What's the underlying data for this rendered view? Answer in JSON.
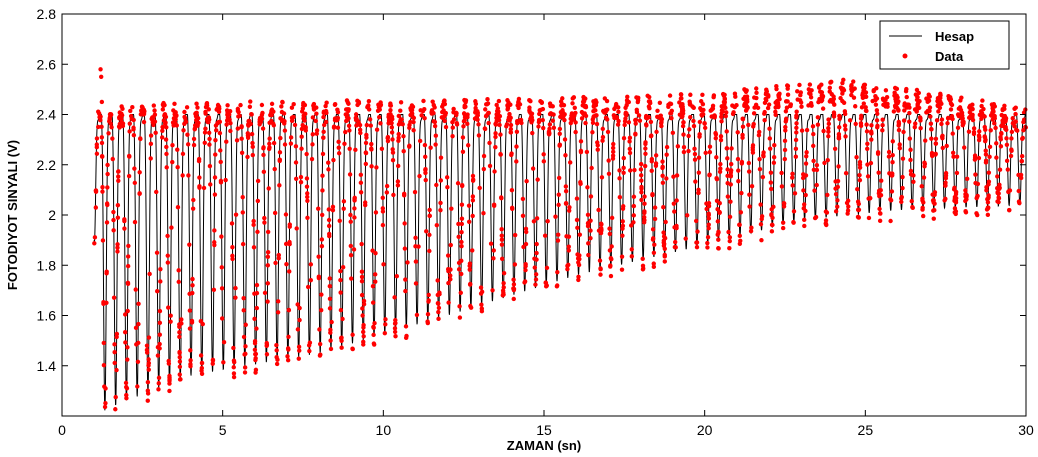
{
  "chart_data": {
    "type": "line",
    "title": "",
    "xlabel": "ZAMAN (sn)",
    "ylabel": "FOTODIYOT SINYALI (V)",
    "xlim": [
      0,
      30
    ],
    "ylim": [
      1.2,
      2.8
    ],
    "xticks": [
      0,
      5,
      10,
      15,
      20,
      25,
      30
    ],
    "yticks": [
      1.4,
      1.6,
      1.8,
      2.0,
      2.2,
      2.4,
      2.6,
      2.8
    ],
    "xtick_labels": [
      "0",
      "5",
      "10",
      "15",
      "20",
      "25",
      "30"
    ],
    "ytick_labels": [
      "1.4",
      "1.6",
      "1.8",
      "2",
      "2.2",
      "2.4",
      "2.6",
      "2.8"
    ],
    "grid": false,
    "legend_position": "top-right",
    "series": [
      {
        "name": "Hesap",
        "kind": "line",
        "color": "#000000",
        "x_range": [
          1.0,
          30.0
        ],
        "oscillation_period": 0.335,
        "max_value": 2.4,
        "min_envelope": [
          [
            1.0,
            1.9
          ],
          [
            1.3,
            1.22
          ],
          [
            2.0,
            1.26
          ],
          [
            4.0,
            1.36
          ],
          [
            8.0,
            1.45
          ],
          [
            12.0,
            1.6
          ],
          [
            16.0,
            1.76
          ],
          [
            20.0,
            1.88
          ],
          [
            23.0,
            1.98
          ],
          [
            26.0,
            2.02
          ],
          [
            30.0,
            2.04
          ]
        ]
      },
      {
        "name": "Data",
        "kind": "scatter",
        "color": "#ff0000",
        "x_range": [
          1.0,
          30.0
        ],
        "peak_values": [
          [
            1.0,
            2.4
          ],
          [
            15.0,
            2.42
          ],
          [
            20.0,
            2.44
          ],
          [
            24.0,
            2.5
          ],
          [
            27.0,
            2.45
          ],
          [
            30.0,
            2.38
          ]
        ],
        "outliers": [
          [
            1.2,
            2.58
          ],
          [
            1.22,
            2.55
          ],
          [
            1.24,
            2.45
          ]
        ]
      }
    ]
  }
}
